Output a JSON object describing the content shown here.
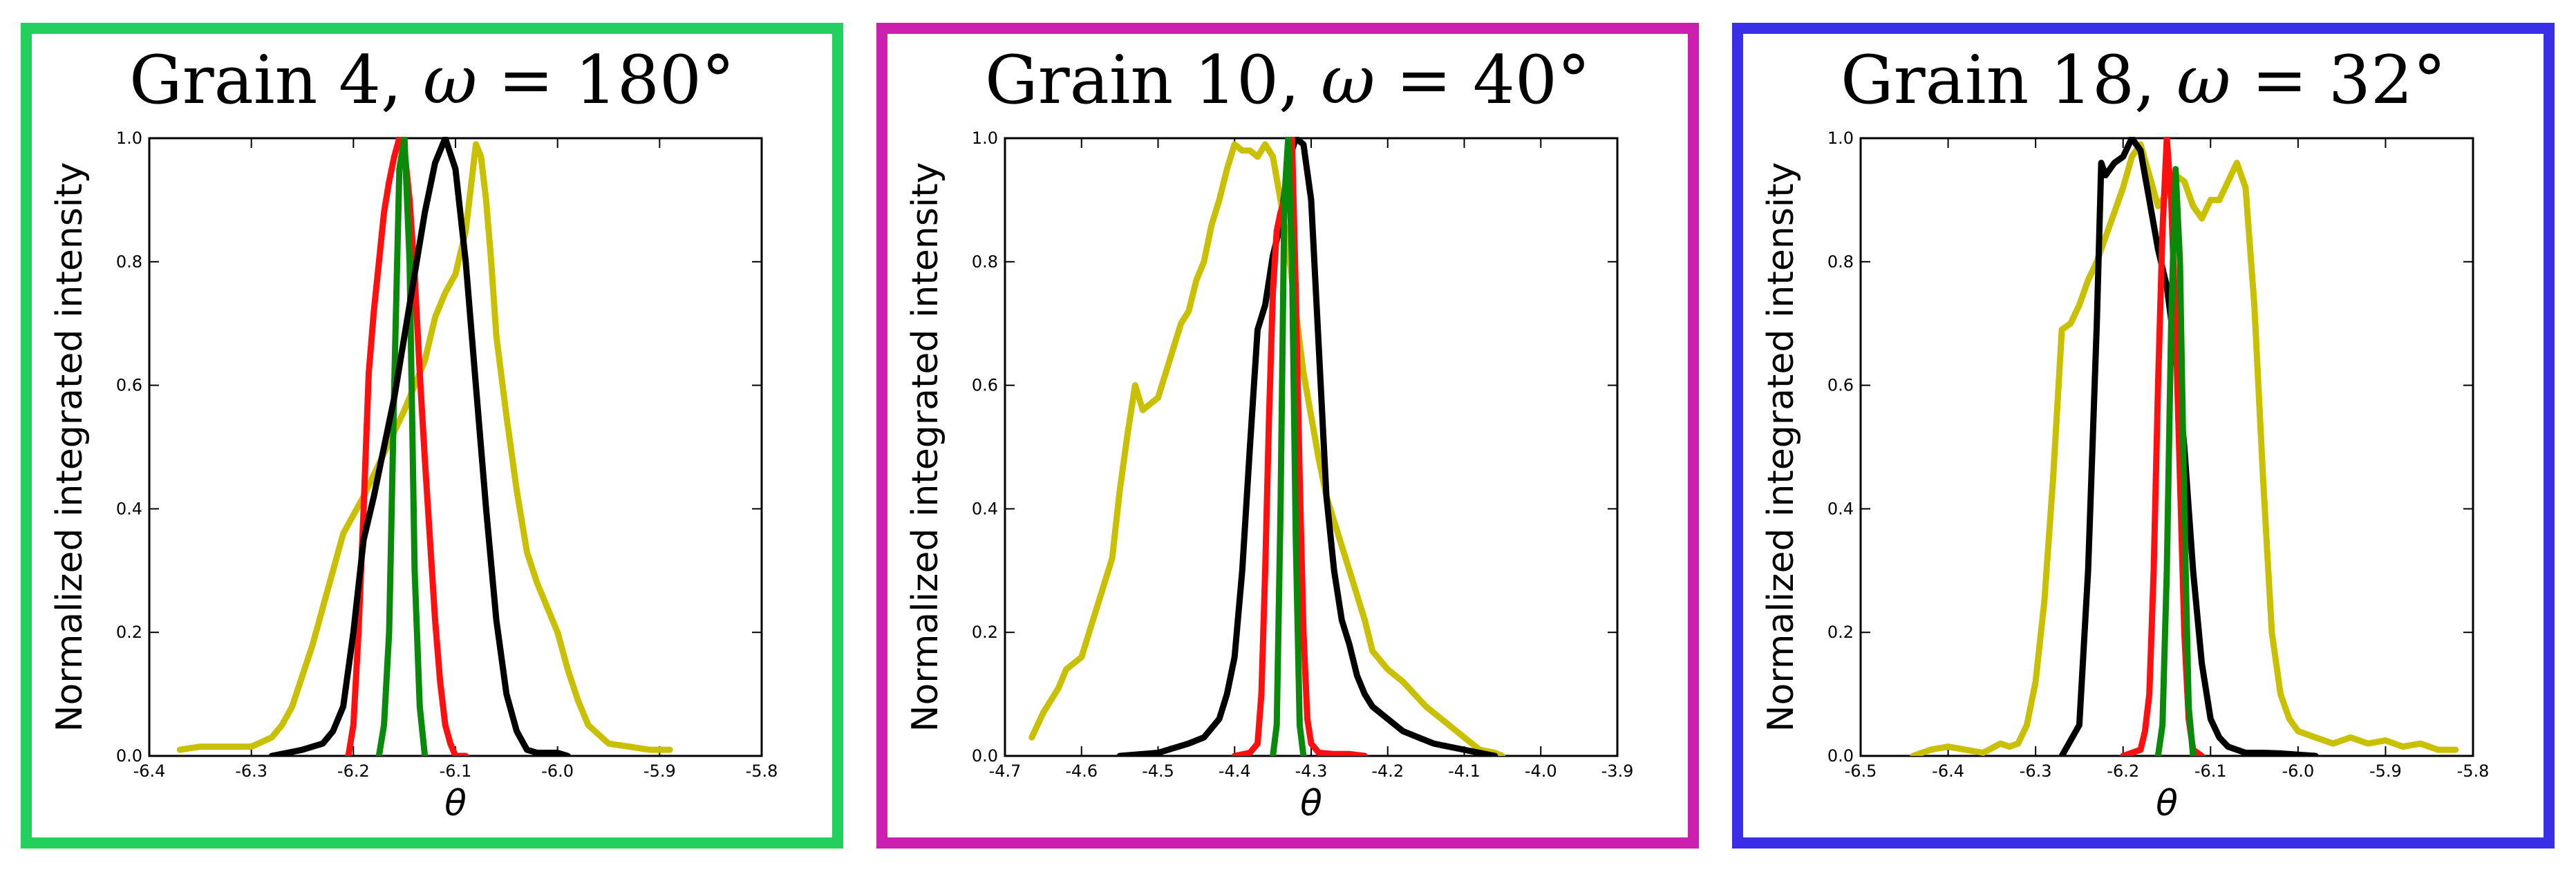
{
  "chart_data": [
    {
      "type": "line",
      "title": {
        "grain": "Grain 4",
        "omega_symbol": "ω",
        "omega_value": "= 180°"
      },
      "frame_color": "#22d05e",
      "xlabel": "θ",
      "ylabel": "Normalized integrated intensity",
      "xlim": [
        -6.4,
        -5.8
      ],
      "ylim": [
        0.0,
        1.0
      ],
      "xticks": [
        "-6.4",
        "-6.3",
        "-6.2",
        "-6.1",
        "-6.0",
        "-5.9",
        "-5.8"
      ],
      "yticks": [
        "0.0",
        "0.2",
        "0.4",
        "0.6",
        "0.8",
        "1.0"
      ],
      "series": [
        {
          "color": "#c8c000",
          "x": [
            -6.37,
            -6.35,
            -6.3,
            -6.28,
            -6.27,
            -6.26,
            -6.25,
            -6.24,
            -6.23,
            -6.22,
            -6.21,
            -6.19,
            -6.17,
            -6.15,
            -6.13,
            -6.12,
            -6.11,
            -6.1,
            -6.09,
            -6.085,
            -6.08,
            -6.075,
            -6.07,
            -6.065,
            -6.06,
            -6.05,
            -6.04,
            -6.03,
            -6.02,
            -6.0,
            -5.99,
            -5.98,
            -5.97,
            -5.95,
            -5.93,
            -5.91,
            -5.89
          ],
          "y": [
            0.01,
            0.015,
            0.015,
            0.03,
            0.05,
            0.08,
            0.13,
            0.18,
            0.24,
            0.3,
            0.36,
            0.42,
            0.49,
            0.56,
            0.64,
            0.71,
            0.75,
            0.78,
            0.85,
            0.92,
            0.99,
            0.97,
            0.9,
            0.8,
            0.68,
            0.55,
            0.43,
            0.33,
            0.28,
            0.2,
            0.14,
            0.09,
            0.05,
            0.02,
            0.015,
            0.01,
            0.01
          ]
        },
        {
          "color": "#ff1010",
          "x": [
            -6.205,
            -6.2,
            -6.195,
            -6.19,
            -6.185,
            -6.18,
            -6.175,
            -6.17,
            -6.165,
            -6.16,
            -6.155,
            -6.15,
            -6.145,
            -6.14,
            -6.135,
            -6.13,
            -6.125,
            -6.12,
            -6.115,
            -6.11,
            -6.105,
            -6.1,
            -6.09
          ],
          "y": [
            0.0,
            0.05,
            0.2,
            0.4,
            0.62,
            0.72,
            0.8,
            0.88,
            0.93,
            0.97,
            1.0,
            0.98,
            0.9,
            0.78,
            0.62,
            0.48,
            0.35,
            0.22,
            0.12,
            0.05,
            0.02,
            0.0,
            0.0
          ]
        },
        {
          "color": "#0a8a0a",
          "x": [
            -6.175,
            -6.17,
            -6.165,
            -6.16,
            -6.155,
            -6.15,
            -6.145,
            -6.14,
            -6.135,
            -6.13
          ],
          "y": [
            0.0,
            0.05,
            0.2,
            0.6,
            0.95,
            1.0,
            0.8,
            0.3,
            0.08,
            0.0
          ]
        },
        {
          "color": "#000000",
          "x": [
            -6.28,
            -6.25,
            -6.23,
            -6.22,
            -6.21,
            -6.2,
            -6.19,
            -6.18,
            -6.17,
            -6.16,
            -6.15,
            -6.14,
            -6.13,
            -6.12,
            -6.11,
            -6.1,
            -6.09,
            -6.08,
            -6.07,
            -6.06,
            -6.05,
            -6.04,
            -6.03,
            -6.02,
            -6.01,
            -6.0,
            -5.99
          ],
          "y": [
            0.0,
            0.01,
            0.02,
            0.04,
            0.08,
            0.2,
            0.35,
            0.42,
            0.5,
            0.58,
            0.68,
            0.78,
            0.88,
            0.96,
            1.0,
            0.95,
            0.8,
            0.6,
            0.4,
            0.22,
            0.1,
            0.04,
            0.01,
            0.005,
            0.005,
            0.005,
            0.0
          ]
        }
      ]
    },
    {
      "type": "line",
      "title": {
        "grain": "Grain 10",
        "omega_symbol": "ω",
        "omega_value": "= 40°"
      },
      "frame_color": "#cc1fb0",
      "xlabel": "θ",
      "ylabel": "Normalized integrated intensity",
      "xlim": [
        -4.7,
        -3.9
      ],
      "ylim": [
        0.0,
        1.0
      ],
      "xticks": [
        "-4.7",
        "-4.6",
        "-4.5",
        "-4.4",
        "-4.3",
        "-4.2",
        "-4.1",
        "-4.0",
        "-3.9"
      ],
      "yticks": [
        "0.0",
        "0.2",
        "0.4",
        "0.6",
        "0.8",
        "1.0"
      ],
      "series": [
        {
          "color": "#c8c000",
          "x": [
            -4.665,
            -4.65,
            -4.63,
            -4.62,
            -4.6,
            -4.59,
            -4.58,
            -4.56,
            -4.55,
            -4.54,
            -4.53,
            -4.52,
            -4.51,
            -4.5,
            -4.49,
            -4.48,
            -4.47,
            -4.46,
            -4.45,
            -4.44,
            -4.43,
            -4.42,
            -4.41,
            -4.4,
            -4.39,
            -4.38,
            -4.37,
            -4.36,
            -4.35,
            -4.34,
            -4.33,
            -4.32,
            -4.31,
            -4.3,
            -4.29,
            -4.28,
            -4.27,
            -4.25,
            -4.23,
            -4.22,
            -4.2,
            -4.18,
            -4.15,
            -4.12,
            -4.1,
            -4.08,
            -4.06,
            -4.05
          ],
          "y": [
            0.03,
            0.07,
            0.11,
            0.14,
            0.16,
            0.2,
            0.24,
            0.32,
            0.43,
            0.52,
            0.6,
            0.56,
            0.57,
            0.58,
            0.62,
            0.66,
            0.7,
            0.72,
            0.77,
            0.8,
            0.86,
            0.9,
            0.95,
            0.99,
            0.98,
            0.98,
            0.97,
            0.99,
            0.97,
            0.9,
            0.82,
            0.72,
            0.62,
            0.55,
            0.48,
            0.42,
            0.38,
            0.3,
            0.22,
            0.17,
            0.14,
            0.12,
            0.08,
            0.05,
            0.03,
            0.01,
            0.005,
            0.0
          ]
        },
        {
          "color": "#000000",
          "x": [
            -4.55,
            -4.5,
            -4.46,
            -4.44,
            -4.42,
            -4.41,
            -4.4,
            -4.39,
            -4.38,
            -4.37,
            -4.36,
            -4.35,
            -4.34,
            -4.33,
            -4.32,
            -4.31,
            -4.3,
            -4.29,
            -4.28,
            -4.27,
            -4.26,
            -4.25,
            -4.24,
            -4.23,
            -4.22,
            -4.2,
            -4.18,
            -4.16,
            -4.14,
            -4.12,
            -4.1,
            -4.08,
            -4.06
          ],
          "y": [
            0.0,
            0.005,
            0.02,
            0.03,
            0.06,
            0.1,
            0.16,
            0.3,
            0.5,
            0.69,
            0.73,
            0.81,
            0.86,
            0.96,
            1.0,
            0.99,
            0.9,
            0.66,
            0.42,
            0.3,
            0.22,
            0.18,
            0.13,
            0.1,
            0.08,
            0.06,
            0.04,
            0.03,
            0.02,
            0.015,
            0.01,
            0.005,
            0.0
          ]
        },
        {
          "color": "#ff1010",
          "x": [
            -4.4,
            -4.38,
            -4.37,
            -4.365,
            -4.36,
            -4.355,
            -4.35,
            -4.345,
            -4.34,
            -4.335,
            -4.33,
            -4.325,
            -4.32,
            -4.315,
            -4.31,
            -4.305,
            -4.3,
            -4.29,
            -4.27,
            -4.25,
            -4.23
          ],
          "y": [
            0.0,
            0.005,
            0.02,
            0.1,
            0.3,
            0.55,
            0.75,
            0.85,
            0.88,
            0.9,
            0.95,
            1.0,
            0.75,
            0.45,
            0.2,
            0.06,
            0.02,
            0.005,
            0.003,
            0.003,
            0.0
          ]
        },
        {
          "color": "#0a8a0a",
          "x": [
            -4.35,
            -4.345,
            -4.34,
            -4.335,
            -4.33,
            -4.325,
            -4.32,
            -4.315,
            -4.31
          ],
          "y": [
            0.0,
            0.05,
            0.4,
            0.9,
            1.0,
            0.8,
            0.35,
            0.05,
            0.0
          ]
        }
      ]
    },
    {
      "type": "line",
      "title": {
        "grain": "Grain 18",
        "omega_symbol": "ω",
        "omega_value": "= 32°"
      },
      "frame_color": "#3a2ee6",
      "xlabel": "θ",
      "ylabel": "Normalized integrated intensity",
      "xlim": [
        -6.5,
        -5.8
      ],
      "ylim": [
        0.0,
        1.0
      ],
      "xticks": [
        "-6.5",
        "-6.4",
        "-6.3",
        "-6.2",
        "-6.1",
        "-6.0",
        "-5.9",
        "-5.8"
      ],
      "yticks": [
        "0.0",
        "0.2",
        "0.4",
        "0.6",
        "0.8",
        "1.0"
      ],
      "series": [
        {
          "color": "#c8c000",
          "x": [
            -6.44,
            -6.42,
            -6.4,
            -6.38,
            -6.36,
            -6.34,
            -6.33,
            -6.32,
            -6.31,
            -6.3,
            -6.29,
            -6.28,
            -6.27,
            -6.26,
            -6.25,
            -6.24,
            -6.23,
            -6.22,
            -6.21,
            -6.2,
            -6.19,
            -6.18,
            -6.17,
            -6.16,
            -6.15,
            -6.14,
            -6.13,
            -6.12,
            -6.11,
            -6.1,
            -6.09,
            -6.08,
            -6.07,
            -6.06,
            -6.05,
            -6.04,
            -6.03,
            -6.02,
            -6.01,
            -6.0,
            -5.98,
            -5.96,
            -5.94,
            -5.92,
            -5.9,
            -5.88,
            -5.86,
            -5.84,
            -5.82
          ],
          "y": [
            0.0,
            0.01,
            0.015,
            0.01,
            0.005,
            0.02,
            0.015,
            0.02,
            0.05,
            0.12,
            0.25,
            0.45,
            0.69,
            0.7,
            0.73,
            0.77,
            0.8,
            0.84,
            0.88,
            0.92,
            0.97,
            0.99,
            0.94,
            0.89,
            0.91,
            0.94,
            0.93,
            0.89,
            0.87,
            0.9,
            0.9,
            0.93,
            0.96,
            0.92,
            0.73,
            0.45,
            0.2,
            0.1,
            0.06,
            0.04,
            0.03,
            0.02,
            0.03,
            0.02,
            0.025,
            0.015,
            0.02,
            0.01,
            0.01
          ]
        },
        {
          "color": "#000000",
          "x": [
            -6.27,
            -6.25,
            -6.24,
            -6.23,
            -6.225,
            -6.22,
            -6.21,
            -6.2,
            -6.19,
            -6.18,
            -6.17,
            -6.16,
            -6.15,
            -6.14,
            -6.13,
            -6.12,
            -6.11,
            -6.1,
            -6.09,
            -6.08,
            -6.06,
            -6.04,
            -6.02,
            -6.0,
            -5.98
          ],
          "y": [
            0.0,
            0.05,
            0.3,
            0.7,
            0.96,
            0.94,
            0.96,
            0.97,
            1.0,
            0.98,
            0.9,
            0.82,
            0.76,
            0.65,
            0.5,
            0.3,
            0.15,
            0.06,
            0.03,
            0.015,
            0.005,
            0.005,
            0.004,
            0.002,
            0.0
          ]
        },
        {
          "color": "#ff1010",
          "x": [
            -6.2,
            -6.18,
            -6.175,
            -6.17,
            -6.165,
            -6.16,
            -6.155,
            -6.15,
            -6.145,
            -6.14,
            -6.135,
            -6.13,
            -6.125,
            -6.12,
            -6.11
          ],
          "y": [
            0.0,
            0.01,
            0.04,
            0.1,
            0.3,
            0.6,
            0.85,
            1.0,
            0.9,
            0.7,
            0.45,
            0.2,
            0.06,
            0.01,
            0.0
          ]
        },
        {
          "color": "#0a8a0a",
          "x": [
            -6.16,
            -6.155,
            -6.15,
            -6.145,
            -6.14,
            -6.135,
            -6.13,
            -6.125,
            -6.12
          ],
          "y": [
            0.0,
            0.05,
            0.3,
            0.7,
            0.95,
            0.8,
            0.4,
            0.08,
            0.0
          ]
        }
      ]
    }
  ]
}
